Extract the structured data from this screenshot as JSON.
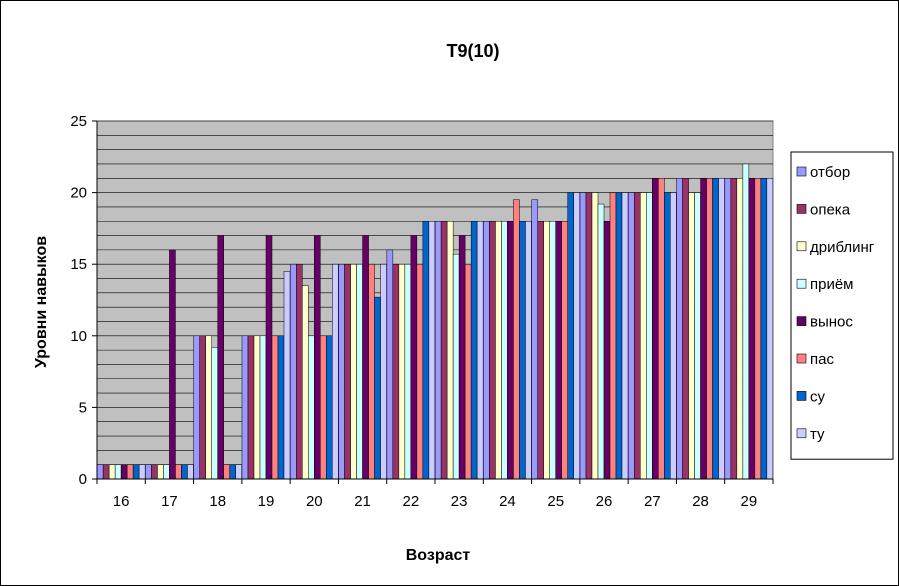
{
  "chart_data": {
    "type": "bar",
    "title": "T9(10)",
    "xlabel": "Возраст",
    "ylabel": "Уровни навыков",
    "ylim": [
      0,
      25
    ],
    "yticks": [
      0,
      5,
      10,
      15,
      20,
      25
    ],
    "categories": [
      "16",
      "17",
      "18",
      "19",
      "20",
      "21",
      "22",
      "23",
      "24",
      "25",
      "26",
      "27",
      "28",
      "29"
    ],
    "grid": true,
    "legend_position": "right",
    "plot_background": "#c0c0c0",
    "series": [
      {
        "name": "отбор",
        "color": "#9999ff",
        "values": [
          1,
          1,
          10,
          10,
          15,
          15,
          16,
          18,
          18,
          19.5,
          20,
          20,
          21,
          21
        ]
      },
      {
        "name": "опека",
        "color": "#993366",
        "values": [
          1,
          1,
          10,
          10,
          15,
          15,
          15,
          18,
          18,
          18,
          20,
          20,
          21,
          21
        ]
      },
      {
        "name": "дриблинг",
        "color": "#ffffcc",
        "values": [
          1,
          1,
          10,
          10,
          13.5,
          15,
          15,
          18,
          18,
          18,
          20,
          20,
          20,
          21
        ]
      },
      {
        "name": "приём",
        "color": "#ccffff",
        "values": [
          1,
          1,
          9.2,
          10,
          10,
          15,
          15,
          15.7,
          18,
          18,
          19.2,
          20,
          20,
          22
        ]
      },
      {
        "name": "вынос",
        "color": "#660066",
        "values": [
          1,
          16,
          17,
          17,
          17,
          17,
          17,
          17,
          18,
          18,
          18,
          21,
          21,
          21
        ]
      },
      {
        "name": "пас",
        "color": "#ff8080",
        "values": [
          1,
          1,
          1,
          10,
          10,
          15,
          15,
          15,
          19.5,
          18,
          20,
          21,
          21,
          21
        ]
      },
      {
        "name": "су",
        "color": "#0066cc",
        "values": [
          1,
          1,
          1,
          10,
          10,
          12.7,
          18,
          18,
          18,
          20,
          20,
          20,
          21,
          21
        ]
      },
      {
        "name": "ту",
        "color": "#ccccff",
        "values": [
          1,
          1,
          1,
          14.5,
          15,
          15,
          18,
          18,
          18,
          20,
          20,
          20,
          21,
          21
        ]
      }
    ]
  }
}
